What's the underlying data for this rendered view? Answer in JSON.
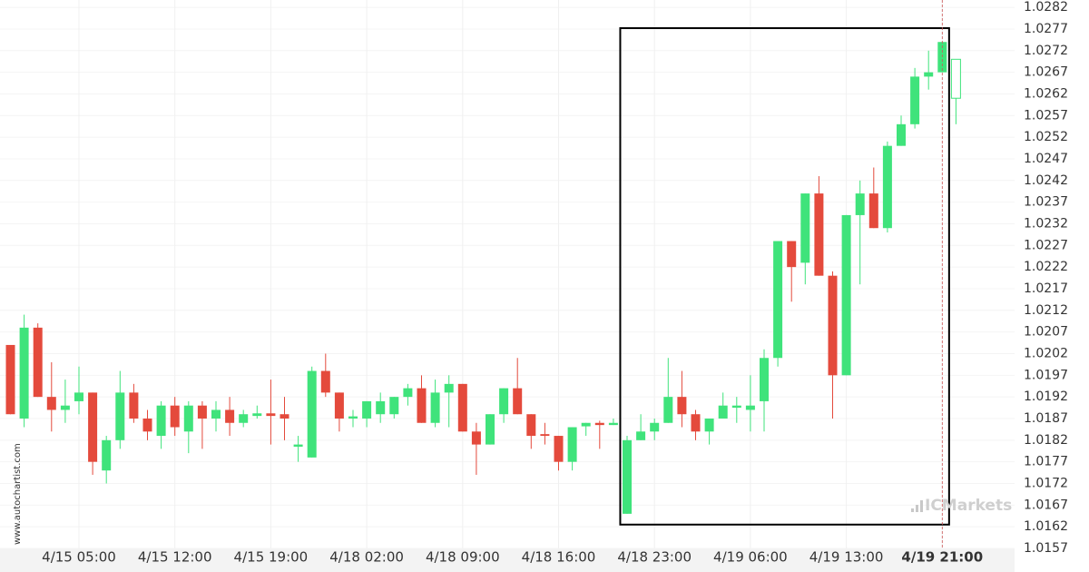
{
  "chart_data": {
    "type": "candlestick",
    "watermark": "www.autochartist.com",
    "logo": "ICMarkets",
    "up_color": "#3fe37b",
    "down_color": "#e44a3c",
    "grid": true,
    "current_index": 68,
    "highlight": {
      "from_index": 45,
      "to_index": 68,
      "high": 1.02772,
      "low": 1.01625
    },
    "ylim": [
      1.0157,
      1.02837
    ],
    "yticks": [
      1.0282,
      1.0277,
      1.0272,
      1.0267,
      1.0262,
      1.0257,
      1.0252,
      1.0247,
      1.0242,
      1.0237,
      1.0232,
      1.0227,
      1.0222,
      1.0217,
      1.0212,
      1.0207,
      1.0202,
      1.0197,
      1.0192,
      1.0187,
      1.0182,
      1.0177,
      1.0172,
      1.0167,
      1.0162,
      1.0157
    ],
    "categories": [
      null,
      null,
      null,
      null,
      null,
      "4/15 05:00",
      null,
      null,
      null,
      null,
      null,
      null,
      "4/15 12:00",
      null,
      null,
      null,
      null,
      null,
      null,
      "4/15 19:00",
      null,
      null,
      null,
      null,
      null,
      null,
      "4/18 02:00",
      null,
      null,
      null,
      null,
      null,
      null,
      "4/18 09:00",
      null,
      null,
      null,
      null,
      null,
      null,
      "4/18 16:00",
      null,
      null,
      null,
      null,
      null,
      null,
      "4/18 23:00",
      null,
      null,
      null,
      null,
      null,
      null,
      "4/19 06:00",
      null,
      null,
      null,
      null,
      null,
      null,
      "4/19 13:00",
      null,
      null,
      null,
      null,
      null,
      null,
      "4/19 21:00",
      null
    ],
    "open": [
      1.0204,
      1.0187,
      1.0208,
      1.0192,
      1.0189,
      1.0191,
      1.0193,
      1.0175,
      1.0182,
      1.0193,
      1.0187,
      1.0183,
      1.019,
      1.0184,
      1.019,
      1.0187,
      1.0189,
      1.0186,
      1.01876,
      1.01882,
      1.0188,
      1.01805,
      1.0178,
      1.0198,
      1.0193,
      1.0187,
      1.0187,
      1.0188,
      1.0188,
      1.0192,
      1.0194,
      1.0186,
      1.0193,
      1.0195,
      1.0184,
      1.0181,
      1.0188,
      1.0194,
      1.0188,
      1.01834,
      1.0183,
      1.0177,
      1.01852,
      1.0186,
      1.01855,
      1.0165,
      1.0182,
      1.0184,
      1.0186,
      1.0192,
      1.0188,
      1.0184,
      1.0187,
      1.01895,
      1.0189,
      1.0191,
      1.0201,
      1.0228,
      1.0223,
      1.0239,
      1.022,
      1.0197,
      1.0234,
      1.0239,
      1.0231,
      1.025,
      1.0255,
      1.0266,
      1.0267,
      1.027
    ],
    "high": [
      1.0204,
      1.0211,
      1.0209,
      1.02,
      1.0196,
      1.0199,
      1.0193,
      1.0183,
      1.0198,
      1.0195,
      1.0189,
      1.0191,
      1.0192,
      1.0191,
      1.0191,
      1.0191,
      1.0192,
      1.0189,
      1.019,
      1.0196,
      1.0192,
      1.0183,
      1.0199,
      1.0202,
      1.0193,
      1.0189,
      1.0191,
      1.0193,
      1.0192,
      1.0195,
      1.0197,
      1.0196,
      1.0197,
      1.0195,
      1.0186,
      1.0188,
      1.0194,
      1.0201,
      1.0188,
      1.0186,
      1.0183,
      1.0185,
      1.0186,
      1.01865,
      1.0187,
      1.0183,
      1.0188,
      1.0187,
      1.0201,
      1.0198,
      1.0189,
      1.0187,
      1.0193,
      1.0192,
      1.0197,
      1.0203,
      1.0228,
      1.0228,
      1.0239,
      1.0243,
      1.0221,
      1.0234,
      1.0242,
      1.0245,
      1.0251,
      1.0257,
      1.0268,
      1.0272,
      1.0274,
      1.027
    ],
    "low": [
      1.0188,
      1.0185,
      1.0192,
      1.0184,
      1.0186,
      1.0188,
      1.0174,
      1.0172,
      1.018,
      1.0186,
      1.0182,
      1.018,
      1.0183,
      1.0179,
      1.018,
      1.0184,
      1.0183,
      1.0185,
      1.0187,
      1.0181,
      1.0182,
      1.0177,
      1.0178,
      1.0192,
      1.0184,
      1.0185,
      1.0185,
      1.0186,
      1.0187,
      1.019,
      1.0186,
      1.0185,
      1.0185,
      1.0184,
      1.0174,
      1.0181,
      1.0186,
      1.0188,
      1.018,
      1.0181,
      1.0175,
      1.0175,
      1.0183,
      1.018,
      1.01855,
      1.0165,
      1.0182,
      1.0182,
      1.0186,
      1.0185,
      1.0182,
      1.0181,
      1.0187,
      1.0186,
      1.0184,
      1.0184,
      1.0199,
      1.0214,
      1.0218,
      1.022,
      1.0187,
      1.0197,
      1.0218,
      1.0231,
      1.023,
      1.025,
      1.0254,
      1.0263,
      1.0267,
      1.0255
    ],
    "close": [
      1.0188,
      1.0208,
      1.0192,
      1.0189,
      1.019,
      1.0193,
      1.0177,
      1.0182,
      1.0193,
      1.0187,
      1.0184,
      1.019,
      1.0185,
      1.019,
      1.0187,
      1.0189,
      1.0186,
      1.0188,
      1.01882,
      1.01876,
      1.0187,
      1.0181,
      1.0198,
      1.0193,
      1.0187,
      1.01875,
      1.0191,
      1.0191,
      1.0192,
      1.0194,
      1.0186,
      1.0193,
      1.0195,
      1.0184,
      1.0181,
      1.0188,
      1.0194,
      1.0188,
      1.0183,
      1.0183,
      1.0177,
      1.0185,
      1.0186,
      1.01855,
      1.0186,
      1.0182,
      1.0184,
      1.0186,
      1.0192,
      1.0188,
      1.0184,
      1.0187,
      1.019,
      1.019,
      1.019,
      1.0201,
      1.0228,
      1.0222,
      1.0239,
      1.022,
      1.0197,
      1.0234,
      1.0239,
      1.0231,
      1.025,
      1.0255,
      1.0266,
      1.0267,
      1.0274,
      1.0261
    ]
  }
}
